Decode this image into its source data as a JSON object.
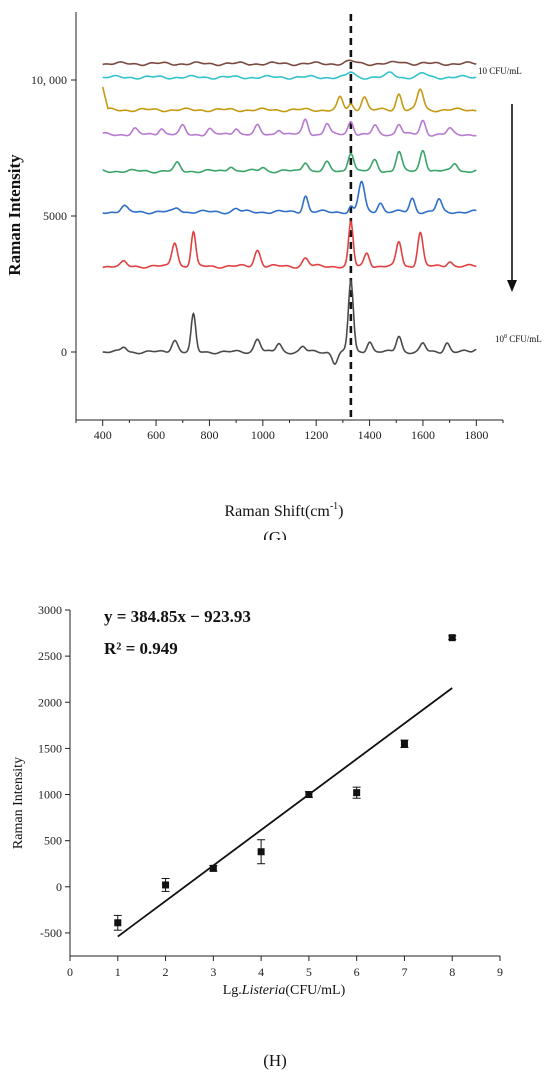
{
  "chart_data": [
    {
      "type": "line",
      "panel_label": "(G)",
      "xlabel": "Raman Shift(cm-1)",
      "xlabel_main": "Raman Shift(cm",
      "xlabel_sup": "-1",
      "xlabel_close": ")",
      "ylabel": "Raman Intensity",
      "xlim": [
        300,
        1900
      ],
      "ylim": [
        -2500,
        12500
      ],
      "x_ticks": [
        400,
        600,
        800,
        1000,
        1200,
        1400,
        1600,
        1800
      ],
      "y_ticks": [
        {
          "value": 0,
          "label": "0"
        },
        {
          "value": 5000,
          "label": "5000"
        },
        {
          "value": 10000,
          "label": "10, 000"
        }
      ],
      "grid": false,
      "reference_line_x": 1330,
      "annotation_top": "10 CFU/mL",
      "annotation_bottom_prefix": "10",
      "annotation_bottom_sup": "8",
      "annotation_bottom_suffix": " CFU/mL",
      "x_range": [
        400,
        1800
      ],
      "series": [
        {
          "color": "#7b4a40",
          "baseline": 10600,
          "peaks": [
            [
              1330,
              80,
              25
            ],
            [
              1520,
              60,
              30
            ]
          ]
        },
        {
          "color": "#33c3cc",
          "baseline": 10100,
          "peaks": [
            [
              1330,
              180,
              18
            ],
            [
              1480,
              160,
              20
            ],
            [
              1600,
              140,
              20
            ]
          ]
        },
        {
          "color": "#c59a12",
          "baseline": 8900,
          "start_value": 9750,
          "peaks": [
            [
              1290,
              450,
              14
            ],
            [
              1380,
              500,
              15
            ],
            [
              1510,
              600,
              14
            ],
            [
              1590,
              750,
              16
            ],
            [
              1330,
              200,
              12
            ]
          ]
        },
        {
          "color": "#b67ad0",
          "baseline": 8000,
          "peaks": [
            [
              520,
              200,
              14
            ],
            [
              620,
              250,
              14
            ],
            [
              700,
              300,
              14
            ],
            [
              800,
              200,
              14
            ],
            [
              900,
              250,
              14
            ],
            [
              980,
              300,
              14
            ],
            [
              1060,
              200,
              14
            ],
            [
              1160,
              550,
              14
            ],
            [
              1240,
              400,
              14
            ],
            [
              1330,
              500,
              14
            ],
            [
              1420,
              300,
              14
            ],
            [
              1510,
              400,
              14
            ],
            [
              1600,
              500,
              14
            ],
            [
              1700,
              200,
              14
            ]
          ]
        },
        {
          "color": "#3aa468",
          "baseline": 6650,
          "peaks": [
            [
              680,
              280,
              15
            ],
            [
              880,
              200,
              15
            ],
            [
              1000,
              150,
              15
            ],
            [
              1160,
              350,
              15
            ],
            [
              1240,
              300,
              15
            ],
            [
              1330,
              700,
              15
            ],
            [
              1420,
              400,
              15
            ],
            [
              1510,
              700,
              15
            ],
            [
              1600,
              800,
              15
            ],
            [
              1720,
              300,
              15
            ]
          ]
        },
        {
          "color": "#2f6fc9",
          "baseline": 5150,
          "peaks": [
            [
              480,
              200,
              16
            ],
            [
              680,
              150,
              16
            ],
            [
              900,
              120,
              16
            ],
            [
              1160,
              600,
              13
            ],
            [
              1370,
              1100,
              16
            ],
            [
              1440,
              350,
              14
            ],
            [
              1560,
              500,
              14
            ],
            [
              1660,
              450,
              14
            ],
            [
              1330,
              200,
              10
            ]
          ]
        },
        {
          "color": "#e24040",
          "baseline": 3150,
          "peaks": [
            [
              480,
              150,
              14
            ],
            [
              670,
              900,
              15
            ],
            [
              740,
              1250,
              12
            ],
            [
              980,
              600,
              16
            ],
            [
              1160,
              300,
              16
            ],
            [
              1330,
              1600,
              12
            ],
            [
              1390,
              500,
              14
            ],
            [
              1510,
              900,
              14
            ],
            [
              1590,
              1250,
              14
            ],
            [
              1700,
              200,
              14
            ]
          ]
        },
        {
          "color": "#4a4a4a",
          "baseline": 0,
          "peaks": [
            [
              480,
              180,
              14
            ],
            [
              670,
              450,
              16
            ],
            [
              740,
              1350,
              12
            ],
            [
              980,
              500,
              16
            ],
            [
              1060,
              300,
              14
            ],
            [
              1150,
              200,
              14
            ],
            [
              1270,
              -400,
              14
            ],
            [
              1330,
              2600,
              13
            ],
            [
              1400,
              400,
              14
            ],
            [
              1510,
              600,
              14
            ],
            [
              1600,
              300,
              14
            ],
            [
              1690,
              350,
              14
            ],
            [
              1800,
              100,
              14
            ]
          ]
        }
      ]
    },
    {
      "type": "scatter",
      "panel_label": "(H)",
      "xlabel_prefix": "Lg.",
      "xlabel_italic": "Listeria",
      "xlabel_suffix": "(CFU/mL)",
      "ylabel": "Raman Intensity",
      "xlim": [
        0,
        9
      ],
      "ylim": [
        -750,
        3000
      ],
      "x_ticks": [
        0,
        1,
        2,
        3,
        4,
        5,
        6,
        7,
        8,
        9
      ],
      "y_ticks": [
        -500,
        0,
        500,
        1000,
        1500,
        2000,
        2500,
        3000
      ],
      "grid": false,
      "equation": "y = 384.85x − 923.93",
      "r2_label": "R² = 0.949",
      "fit": {
        "slope": 384.85,
        "intercept": -923.93,
        "x_range": [
          1.0,
          8.0
        ]
      },
      "points": [
        {
          "x": 1,
          "y": -390,
          "err": 80
        },
        {
          "x": 2,
          "y": 20,
          "err": 70
        },
        {
          "x": 3,
          "y": 200,
          "err": 30
        },
        {
          "x": 4,
          "y": 380,
          "err": 130
        },
        {
          "x": 5,
          "y": 1000,
          "err": 30
        },
        {
          "x": 6,
          "y": 1020,
          "err": 60
        },
        {
          "x": 7,
          "y": 1550,
          "err": 40
        },
        {
          "x": 8,
          "y": 2700,
          "err": 20
        }
      ]
    }
  ]
}
